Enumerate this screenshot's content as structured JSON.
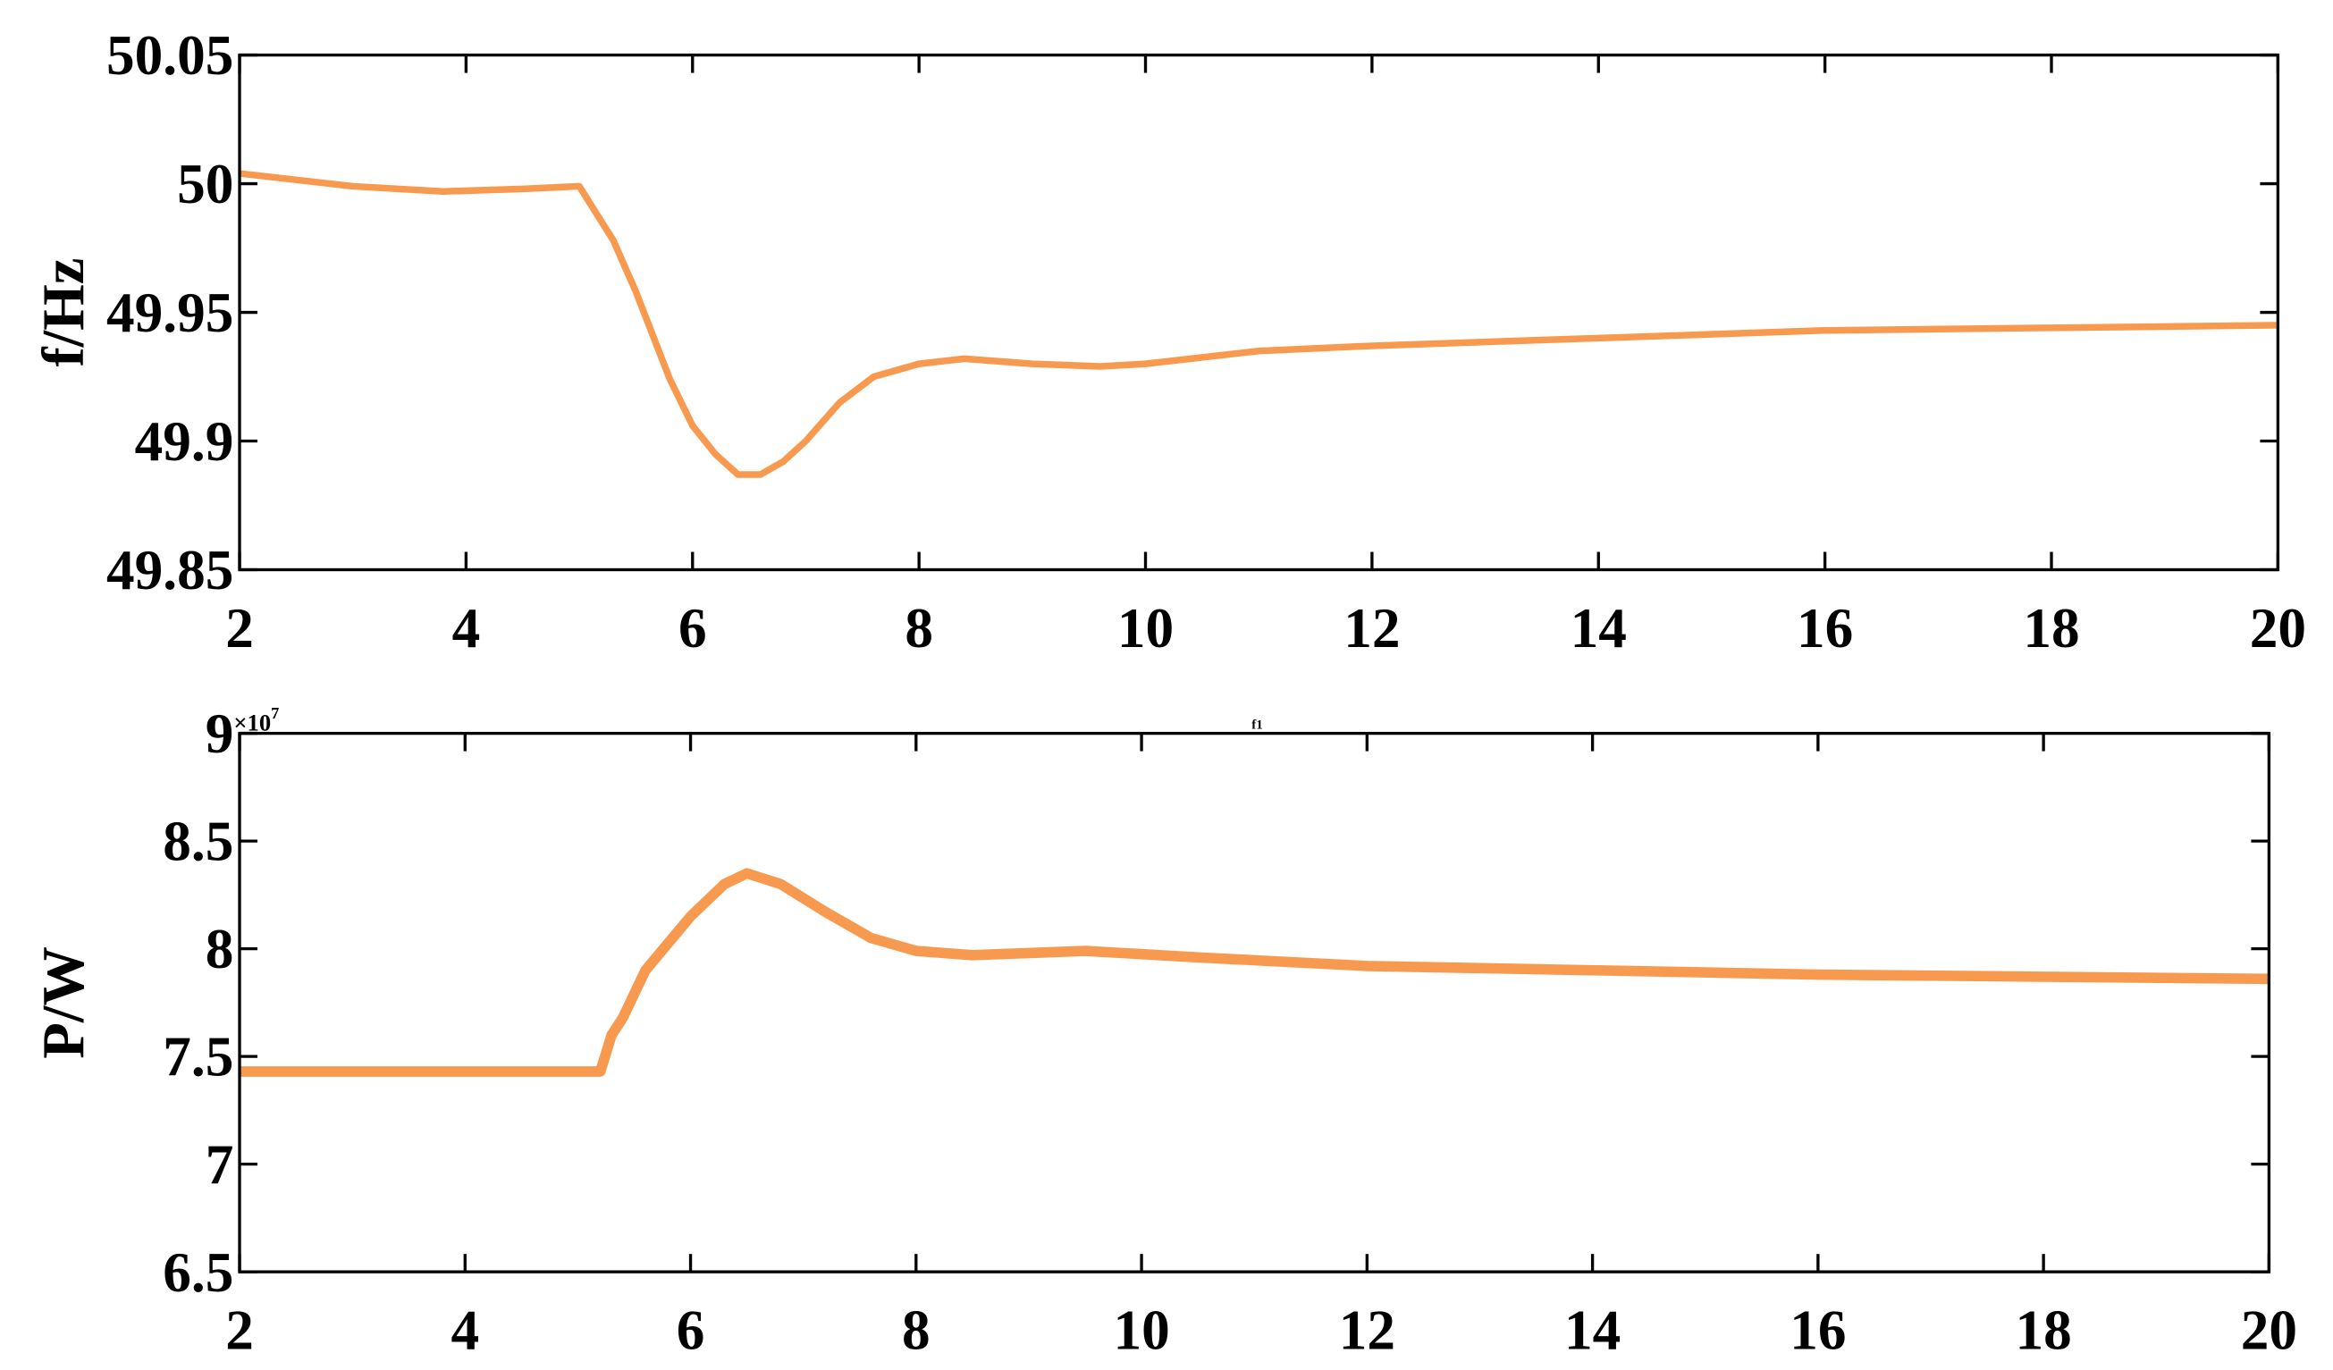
{
  "chart_data": [
    {
      "type": "line",
      "ylabel": "f/Hz",
      "x": [
        2,
        3,
        3.8,
        4.5,
        5,
        5.1,
        5.3,
        5.5,
        5.8,
        6,
        6.2,
        6.4,
        6.6,
        6.8,
        7,
        7.3,
        7.6,
        8,
        8.4,
        9,
        9.6,
        10,
        11,
        12,
        14,
        16,
        18,
        20
      ],
      "series": [
        {
          "color": "#f79a4f",
          "values": [
            50.004,
            49.999,
            49.997,
            49.998,
            49.999,
            49.992,
            49.978,
            49.958,
            49.924,
            49.906,
            49.895,
            49.887,
            49.887,
            49.892,
            49.9,
            49.915,
            49.925,
            49.93,
            49.932,
            49.93,
            49.929,
            49.93,
            49.935,
            49.937,
            49.94,
            49.943,
            49.944,
            49.945
          ]
        }
      ],
      "xlim": [
        2,
        20
      ],
      "xticks": [
        2,
        4,
        6,
        8,
        10,
        12,
        14,
        16,
        18,
        20
      ],
      "ylim": [
        49.85,
        50.05
      ],
      "yticks": [
        49.85,
        49.9,
        49.95,
        50,
        50.05
      ]
    },
    {
      "type": "line",
      "ylabel": "P/W",
      "y_multiplier_base": "×10",
      "y_multiplier_exponent": "7",
      "annotation": "f1",
      "x": [
        2,
        3,
        4,
        5,
        5.2,
        5.3,
        5.4,
        5.6,
        6,
        6.3,
        6.5,
        6.8,
        7.2,
        7.6,
        8,
        8.5,
        9.5,
        10.5,
        12,
        14,
        16,
        18,
        20
      ],
      "series": [
        {
          "color": "#f79a4f",
          "values": [
            7.43,
            7.43,
            7.43,
            7.43,
            7.43,
            7.6,
            7.68,
            7.9,
            8.15,
            8.3,
            8.35,
            8.3,
            8.17,
            8.05,
            7.99,
            7.97,
            7.99,
            7.96,
            7.92,
            7.9,
            7.88,
            7.87,
            7.86
          ]
        }
      ],
      "xlim": [
        2,
        20
      ],
      "xticks": [
        2,
        4,
        6,
        8,
        10,
        12,
        14,
        16,
        18,
        20
      ],
      "ylim": [
        6.5,
        9
      ],
      "yticks": [
        6.5,
        7,
        7.5,
        8,
        8.5,
        9
      ]
    }
  ]
}
